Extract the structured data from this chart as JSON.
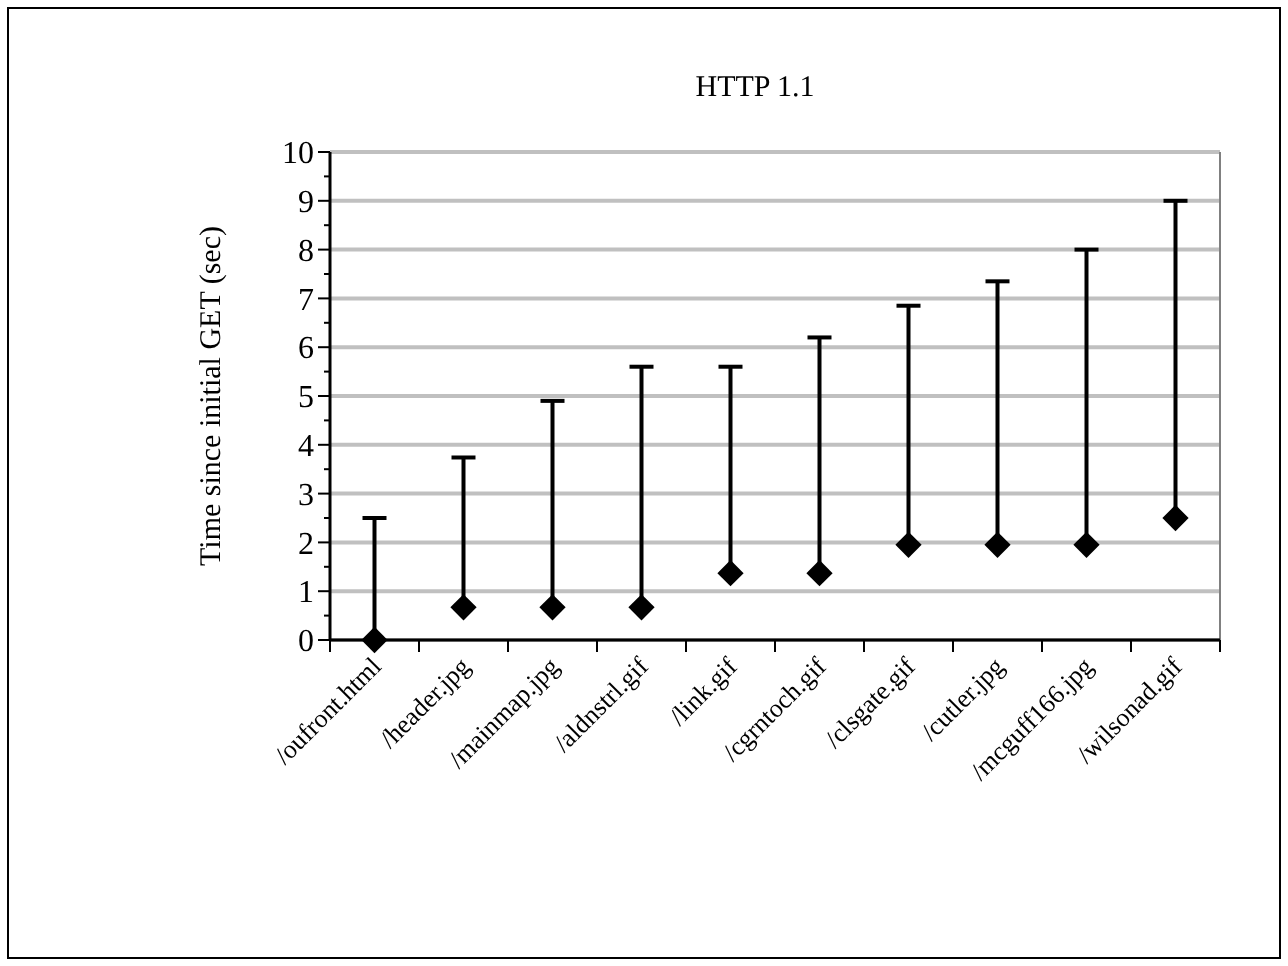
{
  "chart_data": {
    "type": "scatter",
    "title": "HTTP 1.1",
    "ylabel": "Time since initial GET (sec)",
    "categories": [
      "/oufront.html",
      "/header.jpg",
      "/mainmap.jpg",
      "/aldnstrl.gif",
      "/link.gif",
      "/cgrntoch.gif",
      "/clsgate.gif",
      "/cutler.jpg",
      "/mcguff166.jpg",
      "/wilsonad.gif"
    ],
    "series": [
      {
        "color": "#000000",
        "values": [
          0,
          0.67,
          0.67,
          0.67,
          1.37,
          1.37,
          1.95,
          1.95,
          1.95,
          2.5
        ],
        "errors": [
          [
            0,
            2.5
          ],
          [
            0.67,
            3.74
          ],
          [
            0.67,
            4.9
          ],
          [
            0.67,
            5.6
          ],
          [
            1.37,
            5.6
          ],
          [
            1.37,
            6.2
          ],
          [
            1.95,
            6.85
          ],
          [
            1.95,
            7.35
          ],
          [
            1.95,
            8.0
          ],
          [
            2.5,
            9.0
          ]
        ]
      }
    ],
    "ylim": [
      0,
      10
    ],
    "yticks": [
      0,
      1,
      2,
      3,
      4,
      5,
      6,
      7,
      8,
      9,
      10
    ],
    "grid": "y",
    "marker": "diamond"
  }
}
